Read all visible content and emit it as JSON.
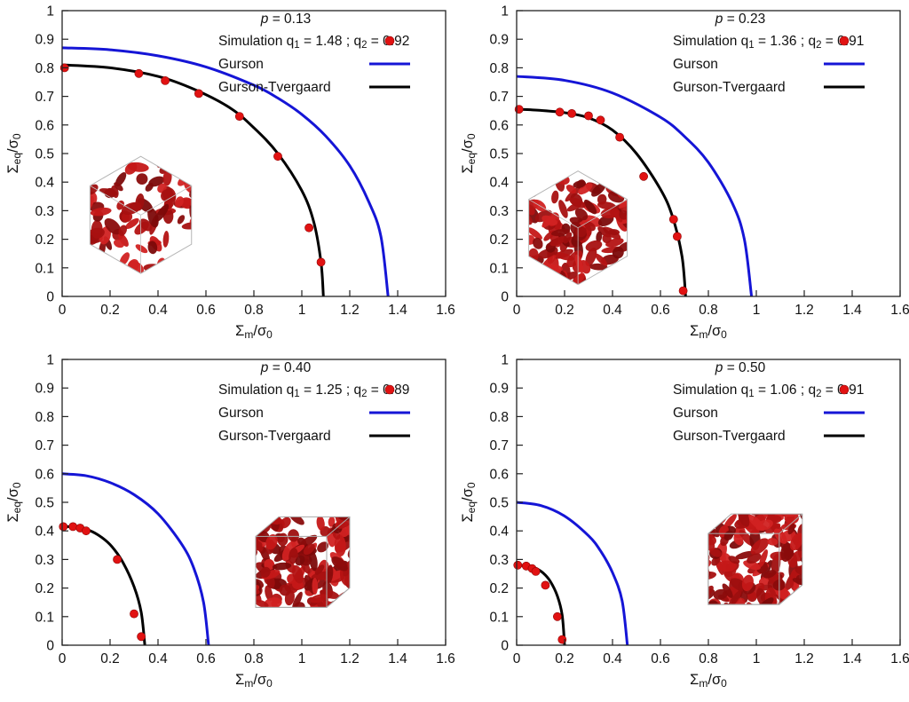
{
  "page": {
    "background": "#ffffff"
  },
  "chart_data": {
    "type": "line",
    "xlabel": "Σ~m~/σ~0~",
    "ylabel": "Σ~eq~/σ~0~",
    "xlim": [
      0,
      1.6
    ],
    "ylim": [
      0,
      1
    ],
    "x_tick_step": 0.2,
    "y_tick_step": 0.1,
    "grid": false,
    "legend_position": "top-center-inside",
    "colors": {
      "gurson": "#1515d6",
      "gurson_tvergaard": "#000000",
      "simulation": "#e11212"
    },
    "inset_colors": [
      "#9e0f0f",
      "#b41313",
      "#8a0c0c",
      "#c51818",
      "#a81111",
      "#d12222",
      "#7c0909"
    ],
    "subplots": [
      {
        "p_italic": "p",
        "p_rest": " = 0.13",
        "legend": {
          "simulation_label": "Simulation q~1~ = 1.48 ; q~2~ = 0.92",
          "gurson_label": "Gurson",
          "gurson_tvergaard_label": "Gurson-Tvergaard"
        },
        "simulation_points": [
          [
            0.01,
            0.8
          ],
          [
            0.32,
            0.78
          ],
          [
            0.43,
            0.755
          ],
          [
            0.57,
            0.71
          ],
          [
            0.74,
            0.63
          ],
          [
            0.9,
            0.49
          ],
          [
            1.03,
            0.24
          ],
          [
            1.08,
            0.12
          ]
        ],
        "gurson_curve": [
          [
            0,
            0.87
          ],
          [
            0.2,
            0.863
          ],
          [
            0.4,
            0.842
          ],
          [
            0.6,
            0.803
          ],
          [
            0.8,
            0.739
          ],
          [
            0.9,
            0.694
          ],
          [
            1.0,
            0.637
          ],
          [
            1.1,
            0.561
          ],
          [
            1.2,
            0.457
          ],
          [
            1.28,
            0.33
          ],
          [
            1.33,
            0.21
          ],
          [
            1.36,
            0
          ]
        ],
        "gurson_tvergaard_curve": [
          [
            0,
            0.81
          ],
          [
            0.2,
            0.8
          ],
          [
            0.4,
            0.77
          ],
          [
            0.55,
            0.725
          ],
          [
            0.7,
            0.66
          ],
          [
            0.8,
            0.59
          ],
          [
            0.9,
            0.5
          ],
          [
            1.0,
            0.37
          ],
          [
            1.05,
            0.26
          ],
          [
            1.08,
            0.12
          ],
          [
            1.09,
            0
          ]
        ],
        "inset": {
          "name": "porous-microstructure-render",
          "style": "hex",
          "cx": 0.205,
          "cy": 0.715,
          "scale": 1.0,
          "count": 95
        }
      },
      {
        "p_italic": "p",
        "p_rest": " = 0.23",
        "legend": {
          "simulation_label": "Simulation q~1~ = 1.36 ; q~2~ = 0.91",
          "gurson_label": "Gurson",
          "gurson_tvergaard_label": "Gurson-Tvergaard"
        },
        "simulation_points": [
          [
            0.01,
            0.655
          ],
          [
            0.18,
            0.645
          ],
          [
            0.23,
            0.64
          ],
          [
            0.3,
            0.632
          ],
          [
            0.35,
            0.617
          ],
          [
            0.43,
            0.557
          ],
          [
            0.53,
            0.42
          ],
          [
            0.655,
            0.27
          ],
          [
            0.67,
            0.21
          ],
          [
            0.695,
            0.02
          ]
        ],
        "gurson_curve": [
          [
            0,
            0.77
          ],
          [
            0.2,
            0.756
          ],
          [
            0.4,
            0.712
          ],
          [
            0.6,
            0.627
          ],
          [
            0.7,
            0.56
          ],
          [
            0.8,
            0.469
          ],
          [
            0.9,
            0.326
          ],
          [
            0.95,
            0.2
          ],
          [
            0.98,
            0
          ]
        ],
        "gurson_tvergaard_curve": [
          [
            0,
            0.655
          ],
          [
            0.1,
            0.651
          ],
          [
            0.2,
            0.643
          ],
          [
            0.3,
            0.625
          ],
          [
            0.4,
            0.582
          ],
          [
            0.5,
            0.5
          ],
          [
            0.6,
            0.375
          ],
          [
            0.65,
            0.28
          ],
          [
            0.69,
            0.14
          ],
          [
            0.705,
            0
          ]
        ],
        "inset": {
          "name": "porous-microstructure-render",
          "style": "hex",
          "cx": 0.16,
          "cy": 0.76,
          "scale": 0.97,
          "count": 130
        }
      },
      {
        "p_italic": "p",
        "p_rest": " = 0.40",
        "legend": {
          "simulation_label": "Simulation q~1~ = 1.25 ; q~2~ = 0.89",
          "gurson_label": "Gurson",
          "gurson_tvergaard_label": "Gurson-Tvergaard"
        },
        "simulation_points": [
          [
            0.005,
            0.415
          ],
          [
            0.045,
            0.415
          ],
          [
            0.075,
            0.41
          ],
          [
            0.1,
            0.4
          ],
          [
            0.23,
            0.3
          ],
          [
            0.3,
            0.11
          ],
          [
            0.33,
            0.03
          ]
        ],
        "gurson_curve": [
          [
            0,
            0.6
          ],
          [
            0.1,
            0.593
          ],
          [
            0.2,
            0.569
          ],
          [
            0.3,
            0.527
          ],
          [
            0.4,
            0.46
          ],
          [
            0.5,
            0.352
          ],
          [
            0.55,
            0.268
          ],
          [
            0.59,
            0.15
          ],
          [
            0.611,
            0
          ]
        ],
        "gurson_tvergaard_curve": [
          [
            0,
            0.415
          ],
          [
            0.05,
            0.414
          ],
          [
            0.1,
            0.406
          ],
          [
            0.15,
            0.386
          ],
          [
            0.2,
            0.352
          ],
          [
            0.25,
            0.295
          ],
          [
            0.3,
            0.205
          ],
          [
            0.33,
            0.115
          ],
          [
            0.345,
            0
          ]
        ],
        "inset": {
          "name": "porous-microstructure-render",
          "style": "cube",
          "cx": 0.625,
          "cy": 0.7,
          "scale": 1.0,
          "count": 175
        }
      },
      {
        "p_italic": "p",
        "p_rest": " = 0.50",
        "legend": {
          "simulation_label": "Simulation q~1~ = 1.06 ; q~2~ = 0.91",
          "gurson_label": "Gurson",
          "gurson_tvergaard_label": "Gurson-Tvergaard"
        },
        "simulation_points": [
          [
            0.005,
            0.28
          ],
          [
            0.04,
            0.277
          ],
          [
            0.065,
            0.268
          ],
          [
            0.08,
            0.258
          ],
          [
            0.12,
            0.21
          ],
          [
            0.17,
            0.1
          ],
          [
            0.19,
            0.02
          ]
        ],
        "gurson_curve": [
          [
            0,
            0.5
          ],
          [
            0.1,
            0.489
          ],
          [
            0.2,
            0.452
          ],
          [
            0.3,
            0.383
          ],
          [
            0.35,
            0.33
          ],
          [
            0.4,
            0.254
          ],
          [
            0.44,
            0.156
          ],
          [
            0.462,
            0
          ]
        ],
        "gurson_tvergaard_curve": [
          [
            0,
            0.28
          ],
          [
            0.05,
            0.277
          ],
          [
            0.08,
            0.269
          ],
          [
            0.11,
            0.253
          ],
          [
            0.14,
            0.224
          ],
          [
            0.17,
            0.172
          ],
          [
            0.19,
            0.105
          ],
          [
            0.2,
            0
          ]
        ],
        "inset": {
          "name": "porous-microstructure-render",
          "style": "cube",
          "cx": 0.62,
          "cy": 0.69,
          "scale": 1.0,
          "count": 190
        }
      }
    ]
  }
}
